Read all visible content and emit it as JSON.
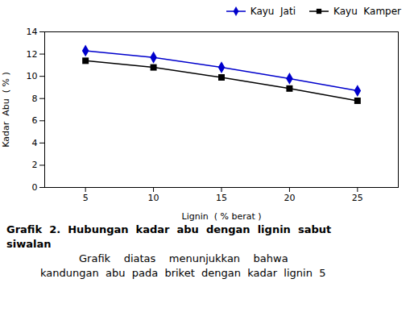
{
  "chart_data": {
    "type": "line",
    "x": [
      5,
      10,
      15,
      20,
      25
    ],
    "series": [
      {
        "name": "Kayu  Jati",
        "color": "#0000CC",
        "marker": "diamond",
        "values": [
          12.3,
          11.7,
          10.8,
          9.8,
          8.7
        ]
      },
      {
        "name": "Kayu  Kamper",
        "color": "#000000",
        "marker": "square",
        "values": [
          11.4,
          10.8,
          9.9,
          8.9,
          7.8
        ]
      }
    ],
    "xlabel": "Lignin  ( % berat )",
    "ylabel": "Kadar  Abu  ( % )",
    "xlim": [
      2,
      28
    ],
    "ylim": [
      0,
      14
    ],
    "xticks": [
      5,
      10,
      15,
      20,
      25
    ],
    "yticks": [
      0,
      2,
      4,
      6,
      8,
      10,
      12,
      14
    ],
    "grid": false,
    "legend": "top",
    "annotations": [
      "Grafik  2.  Hubungan  kadar  abu  dengan  lignin  sabut",
      "siwalan",
      "Grafik    diatas    menunjukkan    bahwa",
      "kandungan  abu  pada  briket  dengan  kadar  lignin  5"
    ]
  }
}
